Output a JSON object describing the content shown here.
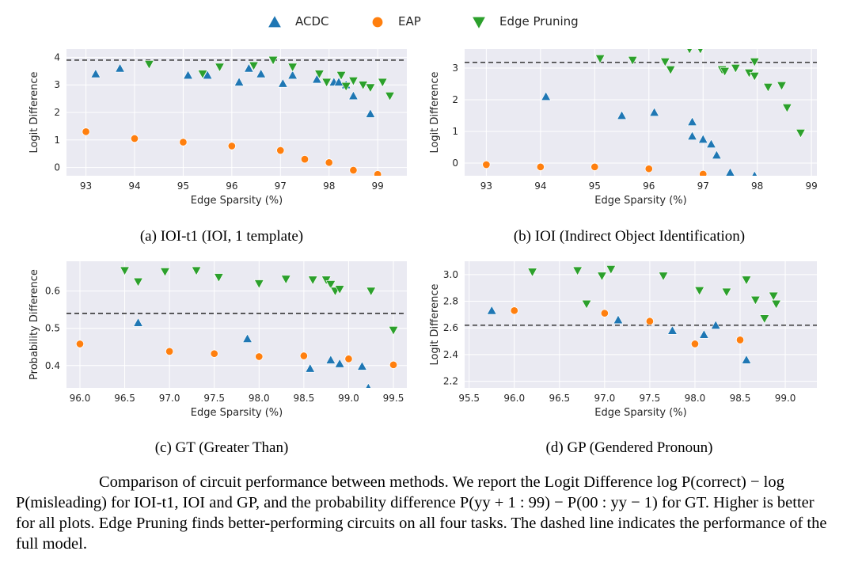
{
  "legend": {
    "entries": [
      {
        "name": "ACDC",
        "marker": "triangle-up",
        "color": "#1f77b4"
      },
      {
        "name": "EAP",
        "marker": "circle",
        "color": "#ff7f0e"
      },
      {
        "name": "Edge Pruning",
        "marker": "triangle-down",
        "color": "#2ca02c"
      }
    ]
  },
  "colors": {
    "ACDC": "#1f77b4",
    "EAP": "#ff7f0e",
    "Edge Pruning": "#2ca02c",
    "panel_bg": "#eaeaf2",
    "grid": "#ffffff",
    "baseline": "#262626"
  },
  "chart_data": [
    {
      "type": "scatter",
      "caption": "(a) IOI-t1 (IOI, 1 template)",
      "xlabel": "Edge Sparsity (%)",
      "ylabel": "Logit Difference",
      "xlim": [
        92.6,
        99.6
      ],
      "ylim": [
        -0.3,
        4.3
      ],
      "xticks": [
        93,
        94,
        95,
        96,
        97,
        98,
        99
      ],
      "xtick_labels": [
        "93",
        "94",
        "95",
        "96",
        "97",
        "98",
        "99"
      ],
      "yticks": [
        0,
        1,
        2,
        3,
        4
      ],
      "ytick_labels": [
        "0",
        "1",
        "2",
        "3",
        "4"
      ],
      "full_model": 3.9,
      "series": [
        {
          "name": "ACDC",
          "x": [
            93.2,
            93.7,
            95.1,
            95.5,
            96.15,
            96.35,
            96.6,
            97.05,
            97.25,
            97.75,
            98.1,
            98.2,
            98.35,
            98.5,
            98.85
          ],
          "y": [
            3.4,
            3.6,
            3.35,
            3.35,
            3.1,
            3.6,
            3.4,
            3.05,
            3.35,
            3.2,
            3.1,
            3.1,
            3.0,
            2.6,
            1.95
          ]
        },
        {
          "name": "EAP",
          "x": [
            93.0,
            94.0,
            95.0,
            96.0,
            97.0,
            97.5,
            98.0,
            98.5,
            99.0
          ],
          "y": [
            1.3,
            1.05,
            0.92,
            0.78,
            0.62,
            0.3,
            0.18,
            -0.1,
            -0.25
          ]
        },
        {
          "name": "Edge Pruning",
          "x": [
            94.3,
            95.4,
            95.75,
            96.45,
            96.85,
            97.25,
            97.8,
            97.95,
            98.25,
            98.35,
            98.5,
            98.7,
            98.85,
            99.1,
            99.25
          ],
          "y": [
            3.75,
            3.4,
            3.65,
            3.7,
            3.9,
            3.65,
            3.4,
            3.1,
            3.35,
            2.95,
            3.15,
            3.0,
            2.9,
            3.1,
            2.6
          ]
        }
      ]
    },
    {
      "type": "scatter",
      "caption": "(b) IOI (Indirect Object Identification)",
      "xlabel": "Edge Sparsity (%)",
      "ylabel": "Logit Difference",
      "xlim": [
        92.6,
        99.1
      ],
      "ylim": [
        -0.4,
        3.6
      ],
      "xticks": [
        93,
        94,
        95,
        96,
        97,
        98,
        99
      ],
      "xtick_labels": [
        "93",
        "94",
        "95",
        "96",
        "97",
        "98",
        "99"
      ],
      "yticks": [
        0,
        1,
        2,
        3
      ],
      "ytick_labels": [
        "0",
        "1",
        "2",
        "3"
      ],
      "full_model": 3.18,
      "series": [
        {
          "name": "ACDC",
          "x": [
            94.1,
            95.5,
            96.1,
            96.8,
            96.8,
            97.0,
            97.15,
            97.25,
            97.5,
            97.95
          ],
          "y": [
            2.1,
            1.5,
            1.6,
            1.3,
            0.85,
            0.75,
            0.6,
            0.25,
            -0.3,
            -0.4
          ]
        },
        {
          "name": "EAP",
          "x": [
            93.0,
            94.0,
            95.0,
            96.0,
            97.0
          ],
          "y": [
            -0.05,
            -0.12,
            -0.12,
            -0.18,
            -0.35
          ]
        },
        {
          "name": "Edge Pruning",
          "x": [
            95.1,
            95.7,
            96.3,
            96.4,
            96.75,
            96.95,
            97.35,
            97.4,
            97.6,
            97.85,
            97.95,
            97.95,
            98.2,
            98.45,
            98.55,
            98.8
          ],
          "y": [
            3.3,
            3.25,
            3.2,
            2.95,
            3.6,
            3.6,
            2.95,
            2.9,
            3.0,
            2.85,
            2.75,
            3.2,
            2.4,
            2.45,
            1.75,
            0.95
          ]
        }
      ]
    },
    {
      "type": "scatter",
      "caption": "(c) GT (Greater Than)",
      "xlabel": "Edge Sparsity (%)",
      "ylabel": "Probability Difference",
      "xlim": [
        95.85,
        99.65
      ],
      "ylim": [
        0.34,
        0.68
      ],
      "xticks": [
        96.0,
        96.5,
        97.0,
        97.5,
        98.0,
        98.5,
        99.0,
        99.5
      ],
      "xtick_labels": [
        "96.0",
        "96.5",
        "97.0",
        "97.5",
        "98.0",
        "98.5",
        "99.0",
        "99.5"
      ],
      "yticks": [
        0.4,
        0.5,
        0.6
      ],
      "ytick_labels": [
        "0.4",
        "0.5",
        "0.6"
      ],
      "full_model": 0.54,
      "series": [
        {
          "name": "ACDC",
          "x": [
            96.65,
            97.87,
            98.57,
            98.8,
            98.9,
            99.15,
            99.22
          ],
          "y": [
            0.515,
            0.472,
            0.392,
            0.415,
            0.405,
            0.398,
            0.34
          ]
        },
        {
          "name": "EAP",
          "x": [
            96.0,
            97.0,
            97.5,
            98.0,
            98.5,
            99.0,
            99.5
          ],
          "y": [
            0.458,
            0.438,
            0.432,
            0.424,
            0.426,
            0.418,
            0.402
          ]
        },
        {
          "name": "Edge Pruning",
          "x": [
            96.5,
            96.65,
            96.95,
            97.3,
            97.55,
            98.0,
            98.3,
            98.6,
            98.75,
            98.8,
            98.85,
            98.9,
            99.25,
            99.5
          ],
          "y": [
            0.655,
            0.625,
            0.652,
            0.655,
            0.637,
            0.62,
            0.632,
            0.63,
            0.63,
            0.618,
            0.6,
            0.605,
            0.6,
            0.495
          ]
        }
      ]
    },
    {
      "type": "scatter",
      "caption": "(d) GP (Gendered Pronoun)",
      "xlabel": "Edge Sparsity (%)",
      "ylabel": "Logit Difference",
      "xlim": [
        95.45,
        99.35
      ],
      "ylim": [
        2.15,
        3.1
      ],
      "xticks": [
        95.5,
        96.0,
        96.5,
        97.0,
        97.5,
        98.0,
        98.5,
        99.0
      ],
      "xtick_labels": [
        "95.5",
        "96.0",
        "96.5",
        "97.0",
        "97.5",
        "98.0",
        "98.5",
        "99.0"
      ],
      "yticks": [
        2.2,
        2.4,
        2.6,
        2.8,
        3.0
      ],
      "ytick_labels": [
        "2.2",
        "2.4",
        "2.6",
        "2.8",
        "3.0"
      ],
      "full_model": 2.62,
      "series": [
        {
          "name": "ACDC",
          "x": [
            95.75,
            97.15,
            97.75,
            98.1,
            98.23,
            98.57
          ],
          "y": [
            2.73,
            2.66,
            2.58,
            2.55,
            2.62,
            2.36
          ]
        },
        {
          "name": "EAP",
          "x": [
            96.0,
            97.0,
            97.5,
            98.0,
            98.5
          ],
          "y": [
            2.73,
            2.71,
            2.65,
            2.48,
            2.51
          ]
        },
        {
          "name": "Edge Pruning",
          "x": [
            96.2,
            96.7,
            96.8,
            96.97,
            97.07,
            97.65,
            98.05,
            98.35,
            98.57,
            98.67,
            98.77,
            98.87,
            98.9
          ],
          "y": [
            3.02,
            3.03,
            2.78,
            2.99,
            3.04,
            2.99,
            2.88,
            2.87,
            2.96,
            2.81,
            2.67,
            2.84,
            2.78
          ]
        }
      ]
    }
  ],
  "figure_caption": "Comparison of circuit performance between methods. We report the Logit Difference log P(correct) − log P(misleading) for IOI-t1, IOI and GP, and the probability difference P(yy + 1 : 99) − P(00 : yy − 1) for GT. Higher is better for all plots. Edge Pruning finds better-performing circuits on all four tasks. The dashed line indicates the performance of the full model."
}
